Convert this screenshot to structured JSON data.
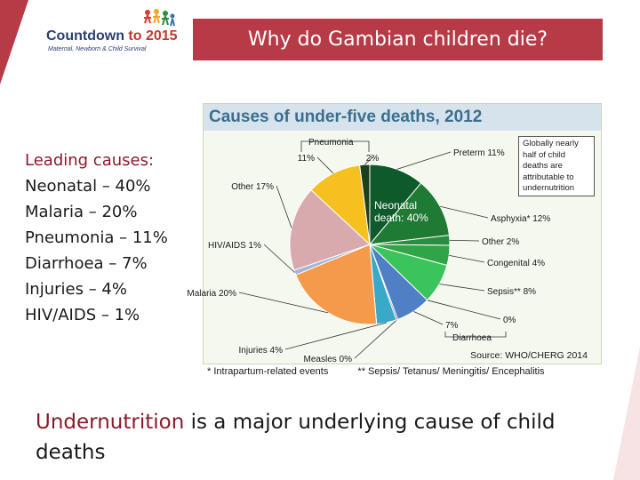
{
  "slide": {
    "title": "Why do Gambian children die?",
    "logo": {
      "name_part1": "Countdown",
      "name_part2": "to 2015",
      "tagline": "Maternal, Newborn & Child Survival"
    },
    "leading_causes": {
      "heading": "Leading causes:",
      "items": [
        "Neonatal – 40%",
        "Malaria – 20%",
        "Pneumonia – 11%",
        "Diarrhoea – 7%",
        "Injuries – 4%",
        "HIV/AIDS – 1%"
      ]
    },
    "bottom": {
      "emphasis": "Undernutrition",
      "rest": " is a major underlying cause of child deaths"
    },
    "footnotes": {
      "left": "* Intrapartum-related events",
      "right": "** Sepsis/ Tetanus/ Meningitis/ Encephalitis"
    },
    "colors": {
      "accent": "#b73a47",
      "heading": "#8b1a2b"
    }
  },
  "chart_data": {
    "type": "pie",
    "title": "Causes of under-five deaths, 2012",
    "source": "Source: WHO/CHERG 2014",
    "center_label": [
      "Neonatal",
      "death: 40%"
    ],
    "note": [
      "Globally nearly",
      "half of child",
      "deaths are",
      "attributable to",
      "undernutrition"
    ],
    "group": "Neonatal death: 40%",
    "slices": [
      {
        "label": "Preterm 11%",
        "value": 11,
        "color": "#0f5a2a"
      },
      {
        "label": "Asphyxia* 12%",
        "value": 12,
        "color": "#1f7a34"
      },
      {
        "label": "Other 2%",
        "value": 2,
        "color": "#2b8e3e"
      },
      {
        "label": "Congenital 4%",
        "value": 4,
        "color": "#2fa548"
      },
      {
        "label": "Sepsis** 8%",
        "value": 8,
        "color": "#3cc45c"
      },
      {
        "label": "0%",
        "value": 0,
        "color": "#6fd584"
      },
      {
        "label": "7%",
        "value": 7,
        "color": "#4f7fc4"
      },
      {
        "label": "Measles 0%",
        "value": 0.3,
        "color": "#2e4f86"
      },
      {
        "label": "Injuries 4%",
        "value": 4,
        "color": "#3aa9c8"
      },
      {
        "label": "Malaria 20%",
        "value": 20,
        "color": "#f59a4a"
      },
      {
        "label": "HIV/AIDS 1%",
        "value": 1,
        "color": "#a8b4d6"
      },
      {
        "label": "Other 17%",
        "value": 17,
        "color": "#d8aaae"
      },
      {
        "label": "11%",
        "value": 11,
        "color": "#f5c020"
      },
      {
        "label": "2%",
        "value": 2,
        "color": "#1c3f1e"
      }
    ],
    "extra_labels": {
      "pneumonia": "Pneumonia",
      "diarrhoea": "Diarrhoea"
    }
  }
}
